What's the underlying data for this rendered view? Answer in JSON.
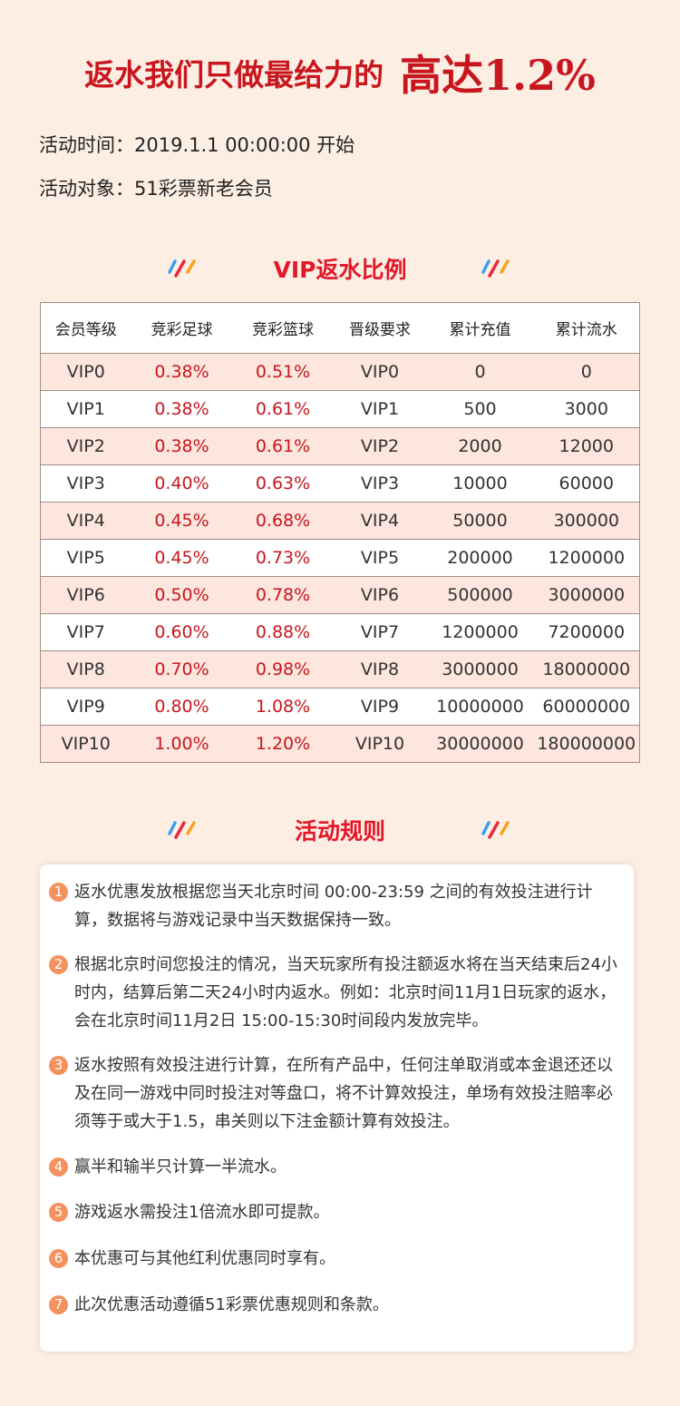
{
  "headline": {
    "main": "返水我们只做最给力的",
    "big": "高达1.2%"
  },
  "info": {
    "time": "活动时间：2019.1.1 00:00:00 开始",
    "target": "活动对象：51彩票新老会员"
  },
  "vip_section": {
    "title": "VIP返水比例"
  },
  "table": {
    "headers": [
      "会员等级",
      "竞彩足球",
      "竞彩篮球",
      "晋级要求",
      "累计充值",
      "累计流水"
    ],
    "rows": [
      [
        "VIP0",
        "0.38%",
        "0.51%",
        "VIP0",
        "0",
        "0"
      ],
      [
        "VIP1",
        "0.38%",
        "0.61%",
        "VIP1",
        "500",
        "3000"
      ],
      [
        "VIP2",
        "0.38%",
        "0.61%",
        "VIP2",
        "2000",
        "12000"
      ],
      [
        "VIP3",
        "0.40%",
        "0.63%",
        "VIP3",
        "10000",
        "60000"
      ],
      [
        "VIP4",
        "0.45%",
        "0.68%",
        "VIP4",
        "50000",
        "300000"
      ],
      [
        "VIP5",
        "0.45%",
        "0.73%",
        "VIP5",
        "200000",
        "1200000"
      ],
      [
        "VIP6",
        "0.50%",
        "0.78%",
        "VIP6",
        "500000",
        "3000000"
      ],
      [
        "VIP7",
        "0.60%",
        "0.88%",
        "VIP7",
        "1200000",
        "7200000"
      ],
      [
        "VIP8",
        "0.70%",
        "0.98%",
        "VIP8",
        "3000000",
        "18000000"
      ],
      [
        "VIP9",
        "0.80%",
        "1.08%",
        "VIP9",
        "10000000",
        "60000000"
      ],
      [
        "VIP10",
        "1.00%",
        "1.20%",
        "VIP10",
        "30000000",
        "180000000"
      ]
    ]
  },
  "rules_section": {
    "title": "活动规则"
  },
  "rules": [
    {
      "num": "1",
      "text": "返水优惠发放根据您当天北京时间 00:00-23:59 之间的有效投注进行计算，数据将与游戏记录中当天数据保持一致。"
    },
    {
      "num": "2",
      "text": "根据北京时间您投注的情况，当天玩家所有投注额返水将在当天结束后24小时内，结算后第二天24小时内返水。例如：北京时间11月1日玩家的返水，会在北京时间11月2日 15:00-15:30时间段内发放完毕。"
    },
    {
      "num": "3",
      "text": "返水按照有效投注进行计算，在所有产品中，任何注单取消或本金退还还以及在同一游戏中同时投注对等盘口，将不计算效投注，单场有效投注赔率必须等于或大于1.5，串关则以下注金额计算有效投注。"
    },
    {
      "num": "4",
      "text": "赢半和输半只计算一半流水。"
    },
    {
      "num": "5",
      "text": "游戏返水需投注1倍流水即可提款。"
    },
    {
      "num": "6",
      "text": "本优惠可与其他红利优惠同时享有。"
    },
    {
      "num": "7",
      "text": "此次优惠活动遵循51彩票优惠规则和条款。"
    }
  ],
  "colors": {
    "accent": "#c8161e",
    "background": "#fdeee4",
    "row_tint": "#fde6de",
    "badge": "#f4915f"
  }
}
